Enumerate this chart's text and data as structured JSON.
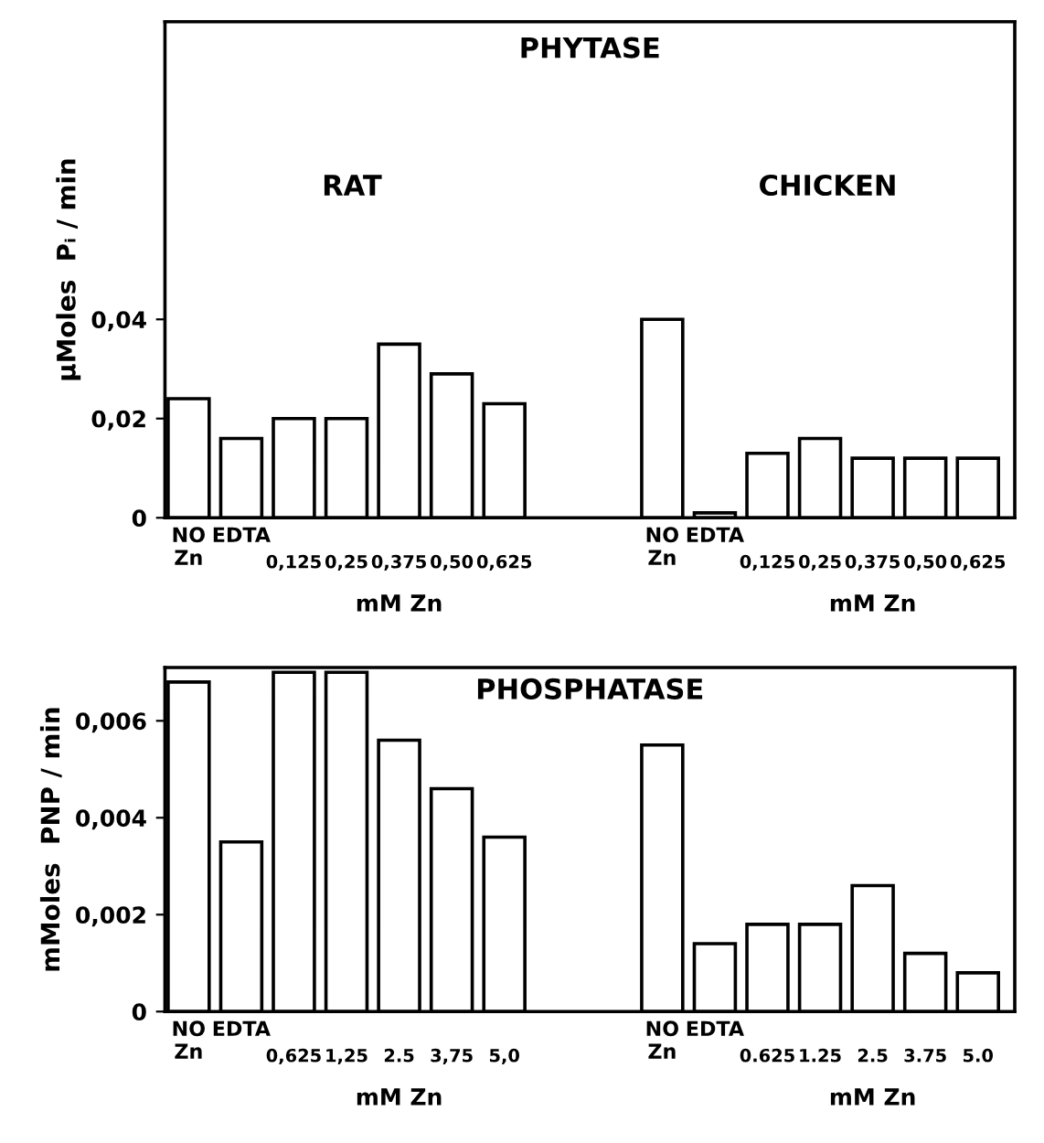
{
  "chart_data": [
    {
      "type": "bar",
      "title": "PHYTASE",
      "ylabel": "μMoles  Pᵢ / min",
      "categories": [
        "NO\nZn",
        "EDTA",
        "0,125",
        "0,25",
        "0,375",
        "0,50",
        "0,625",
        null,
        null,
        "NO\nZn",
        "EDTA",
        "0,125",
        "0,25",
        "0,375",
        "0,50",
        "0,625"
      ],
      "values": [
        0.024,
        0.016,
        0.02,
        0.02,
        0.035,
        0.029,
        0.023,
        null,
        null,
        0.04,
        0.001,
        0.013,
        0.016,
        0.012,
        0.012,
        0.012
      ],
      "color": "#ffffff",
      "ylim": [
        0,
        0.1
      ],
      "yticks": [
        0,
        {
          "value": 0.02,
          "label": "0,02"
        },
        {
          "value": 0.04,
          "label": "0,04"
        }
      ],
      "annotations": [
        "RAT",
        "CHICKEN",
        "mM Zn",
        "mM Zn"
      ]
    },
    {
      "type": "bar",
      "title": "PHOSPHATASE",
      "ylabel": "mMoles  PNP / min",
      "categories": [
        "NO\nZn",
        "EDTA",
        "0,625",
        "1,25",
        "2.5",
        "3,75",
        "5,0",
        null,
        null,
        "NO\nZn",
        "EDTA",
        "0.625",
        "1.25",
        "2.5",
        "3.75",
        "5.0"
      ],
      "values": [
        0.0068,
        0.0035,
        0.007,
        0.007,
        0.0056,
        0.0046,
        0.0036,
        null,
        null,
        0.0055,
        0.0014,
        0.0018,
        0.0018,
        0.0026,
        0.0012,
        0.0008
      ],
      "color": "#ffffff",
      "ylim": [
        0,
        0.0071
      ],
      "yticks": [
        0,
        {
          "value": 0.002,
          "label": "0,002"
        },
        {
          "value": 0.004,
          "label": "0,004"
        },
        {
          "value": 0.006,
          "label": "0,006"
        }
      ],
      "annotations": [
        "mM Zn",
        "mM Zn"
      ]
    }
  ]
}
